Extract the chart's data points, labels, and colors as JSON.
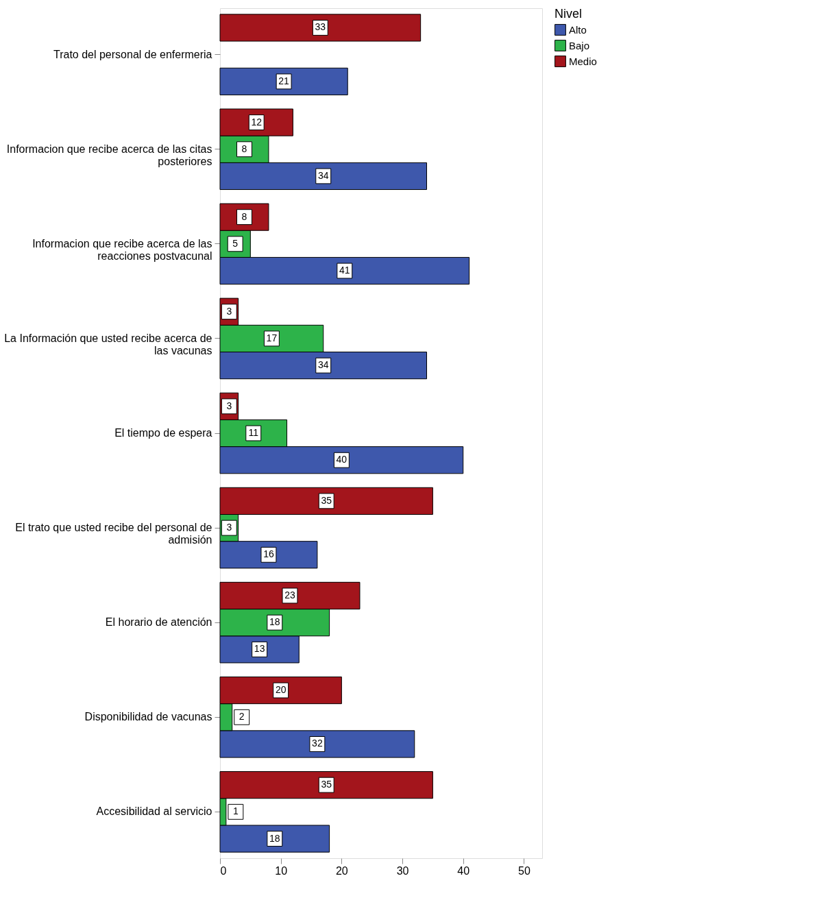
{
  "chart_data": {
    "type": "bar",
    "orientation": "horizontal",
    "legend_title": "Nivel",
    "legend": "top right",
    "data_labels": true,
    "grid": false,
    "categories": [
      "Trato del personal de enfermeria",
      "Informacion que recibe acerca de las citas posteriores",
      "Informacion que recibe acerca de las reacciones postvacunal",
      "La Información que usted recibe acerca de las vacunas",
      "El tiempo de espera",
      "El trato que usted recibe del personal de admisión",
      "El horario de atención",
      "Disponibilidad de vacunas",
      "Accesibilidad al servicio"
    ],
    "series": [
      {
        "name": "Alto",
        "color": "#3e58ac",
        "values": [
          21,
          34,
          41,
          34,
          40,
          16,
          13,
          32,
          18
        ]
      },
      {
        "name": "Bajo",
        "color": "#2db34a",
        "values": [
          null,
          8,
          5,
          17,
          11,
          3,
          18,
          2,
          1
        ]
      },
      {
        "name": "Medio",
        "color": "#a3151c",
        "values": [
          33,
          12,
          8,
          3,
          3,
          35,
          23,
          20,
          35
        ]
      }
    ],
    "xlim": [
      0,
      53
    ],
    "xticks": [
      0,
      10,
      20,
      30,
      40,
      50
    ]
  }
}
